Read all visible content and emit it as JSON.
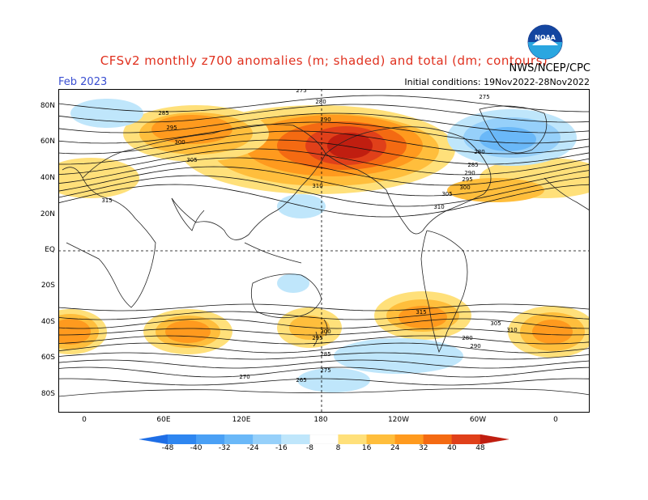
{
  "header": {
    "title": "CFSv2 monthly z700 anomalies (m; shaded) and total (dm; contours)",
    "month": "Feb 2023",
    "initial_conditions": "Initial conditions: 19Nov2022-28Nov2022",
    "agency": "NWS/NCEP/CPC",
    "logo_text": "NOAA"
  },
  "axes": {
    "lat_labels": [
      "80N",
      "60N",
      "40N",
      "20N",
      "EQ",
      "20S",
      "40S",
      "60S",
      "80S"
    ],
    "lon_labels": [
      "0",
      "60E",
      "120E",
      "180",
      "120W",
      "60W",
      "0"
    ]
  },
  "colorbar": {
    "labels": [
      "-48",
      "-40",
      "-32",
      "-24",
      "-16",
      "-8",
      "8",
      "16",
      "24",
      "32",
      "40",
      "48"
    ],
    "colors": [
      "#1e6ee6",
      "#2e86f0",
      "#4aa0f5",
      "#6ab8f8",
      "#96d0fa",
      "#bfe6fb",
      "#ffffff",
      "#ffe07a",
      "#ffbe3c",
      "#ff9a1e",
      "#f46a12",
      "#e0401a",
      "#c01e10"
    ]
  },
  "contour_labels": [
    "275",
    "280",
    "285",
    "290",
    "295",
    "300",
    "305",
    "310",
    "315",
    "275",
    "280",
    "285",
    "290",
    "295",
    "300",
    "305",
    "310",
    "315",
    "265",
    "270",
    "275",
    "280",
    "285",
    "290",
    "295",
    "300",
    "305",
    "310"
  ],
  "legend_colors": {
    "accent": "#e0301e",
    "month_blue": "#3a4fd1"
  }
}
